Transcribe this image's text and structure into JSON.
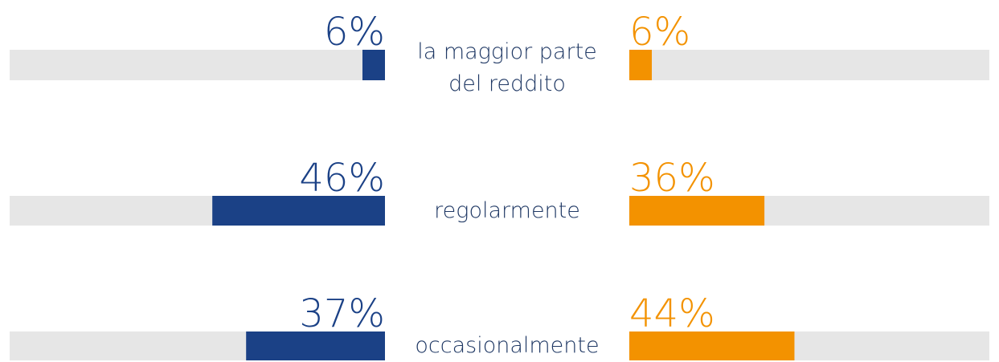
{
  "chart_data": {
    "type": "butterfly-bar",
    "categories": [
      "la maggior parte\ndel reddito",
      "regolarmente",
      "occasionalmente"
    ],
    "series": [
      {
        "color": "#1b4186",
        "values": [
          6,
          46,
          37
        ],
        "value_labels": [
          "6%",
          "46%",
          "37%"
        ]
      },
      {
        "color": "#f39200",
        "values": [
          6,
          36,
          44
        ],
        "value_labels": [
          "6%",
          "36%",
          "44%"
        ]
      }
    ],
    "xlim": [
      0,
      100
    ]
  }
}
